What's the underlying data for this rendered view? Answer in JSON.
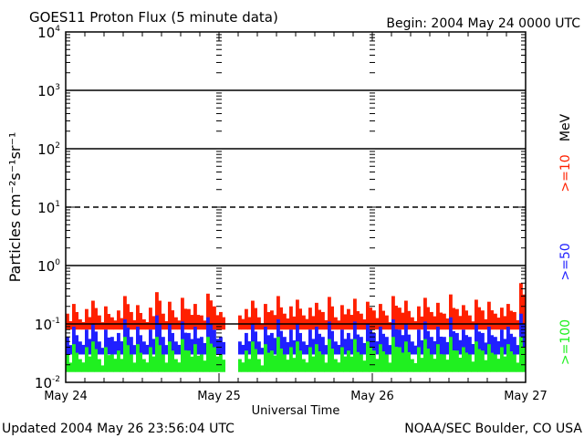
{
  "chart_data": {
    "type": "line",
    "title": "GOES11 Proton Flux (5 minute data)",
    "begin_label": "Begin: 2004 May 24 0000 UTC",
    "xlabel": "Universal Time",
    "ylabel": "Particles cm⁻²s⁻¹sr⁻¹",
    "yscale": "log",
    "ylim": [
      0.01,
      10000
    ],
    "y_ticks": [
      {
        "base": "10",
        "exp": "4"
      },
      {
        "base": "10",
        "exp": "3"
      },
      {
        "base": "10",
        "exp": "2"
      },
      {
        "base": "10",
        "exp": "1"
      },
      {
        "base": "10",
        "exp": "0"
      },
      {
        "base": "10",
        "exp": "-1"
      },
      {
        "base": "10",
        "exp": "-2"
      }
    ],
    "x_ticks": [
      "May 24",
      "May 25",
      "May 26",
      "May 27"
    ],
    "x_unit": "hours since 2004 May 24 0000 UTC",
    "xlim": [
      0,
      72
    ],
    "units_label": "MeV",
    "series": [
      {
        "name": ">=10",
        "color": "#ff2000",
        "floor": 0.08,
        "values": [
          0.15,
          0.22,
          0.12,
          0.18,
          0.25,
          0.14,
          0.2,
          0.13,
          0.17,
          0.3,
          0.16,
          0.21,
          0.12,
          0.19,
          0.35,
          0.15,
          0.24,
          0.13,
          0.28,
          0.18,
          0.22,
          0.14,
          0.33,
          0.2,
          0.16,
          null,
          null,
          0.14,
          0.18,
          0.25,
          0.13,
          0.22,
          0.17,
          0.3,
          0.15,
          0.2,
          0.26,
          0.14,
          0.19,
          0.23,
          0.16,
          0.29,
          0.13,
          0.21,
          0.18,
          0.27,
          0.15,
          0.24,
          0.17,
          0.22,
          0.14,
          0.3,
          0.19,
          0.25,
          0.13,
          0.2,
          0.28,
          0.16,
          0.23,
          0.15,
          0.32,
          0.18,
          0.21,
          0.14,
          0.26,
          0.17,
          0.24,
          0.15,
          0.19,
          0.22,
          0.16,
          0.5
        ]
      },
      {
        "name": ">=50",
        "color": "#2020ff",
        "floor": 0.03,
        "values": [
          0.06,
          0.09,
          0.05,
          0.08,
          0.1,
          0.05,
          0.08,
          0.06,
          0.07,
          0.12,
          0.06,
          0.09,
          0.05,
          0.08,
          0.14,
          0.06,
          0.1,
          0.05,
          0.11,
          0.07,
          0.09,
          0.06,
          0.13,
          0.08,
          0.06,
          null,
          null,
          0.05,
          0.07,
          0.1,
          0.05,
          0.09,
          0.07,
          0.12,
          0.06,
          0.08,
          0.1,
          0.05,
          0.08,
          0.09,
          0.06,
          0.11,
          0.05,
          0.08,
          0.07,
          0.11,
          0.06,
          0.1,
          0.07,
          0.09,
          0.06,
          0.12,
          0.08,
          0.1,
          0.05,
          0.08,
          0.11,
          0.06,
          0.09,
          0.06,
          0.13,
          0.07,
          0.08,
          0.06,
          0.1,
          0.07,
          0.09,
          0.06,
          0.08,
          0.09,
          0.06,
          0.15
        ]
      },
      {
        "name": ">=100",
        "color": "#20f020",
        "floor": 0.015,
        "values": [
          0.03,
          0.045,
          0.025,
          0.04,
          0.05,
          0.025,
          0.04,
          0.03,
          0.035,
          0.06,
          0.03,
          0.045,
          0.025,
          0.04,
          0.06,
          0.03,
          0.05,
          0.025,
          0.055,
          0.035,
          0.045,
          0.03,
          0.06,
          0.04,
          0.03,
          null,
          null,
          0.025,
          0.035,
          0.05,
          0.025,
          0.045,
          0.035,
          0.06,
          0.03,
          0.04,
          0.05,
          0.025,
          0.04,
          0.045,
          0.03,
          0.055,
          0.025,
          0.04,
          0.035,
          0.055,
          0.03,
          0.05,
          0.035,
          0.045,
          0.03,
          0.06,
          0.04,
          0.05,
          0.025,
          0.04,
          0.055,
          0.03,
          0.045,
          0.03,
          0.06,
          0.035,
          0.04,
          0.03,
          0.05,
          0.035,
          0.045,
          0.03,
          0.04,
          0.045,
          0.03,
          0.06
        ]
      }
    ],
    "reference_lines": [
      {
        "y": 1000,
        "style": "solid"
      },
      {
        "y": 100,
        "style": "solid"
      },
      {
        "y": 10,
        "style": "dashed"
      },
      {
        "y": 1,
        "style": "solid"
      },
      {
        "y": 0.1,
        "style": "solid"
      }
    ]
  },
  "footer": {
    "updated": "Updated 2004 May 26 23:56:04 UTC",
    "source": "NOAA/SEC Boulder, CO USA"
  }
}
